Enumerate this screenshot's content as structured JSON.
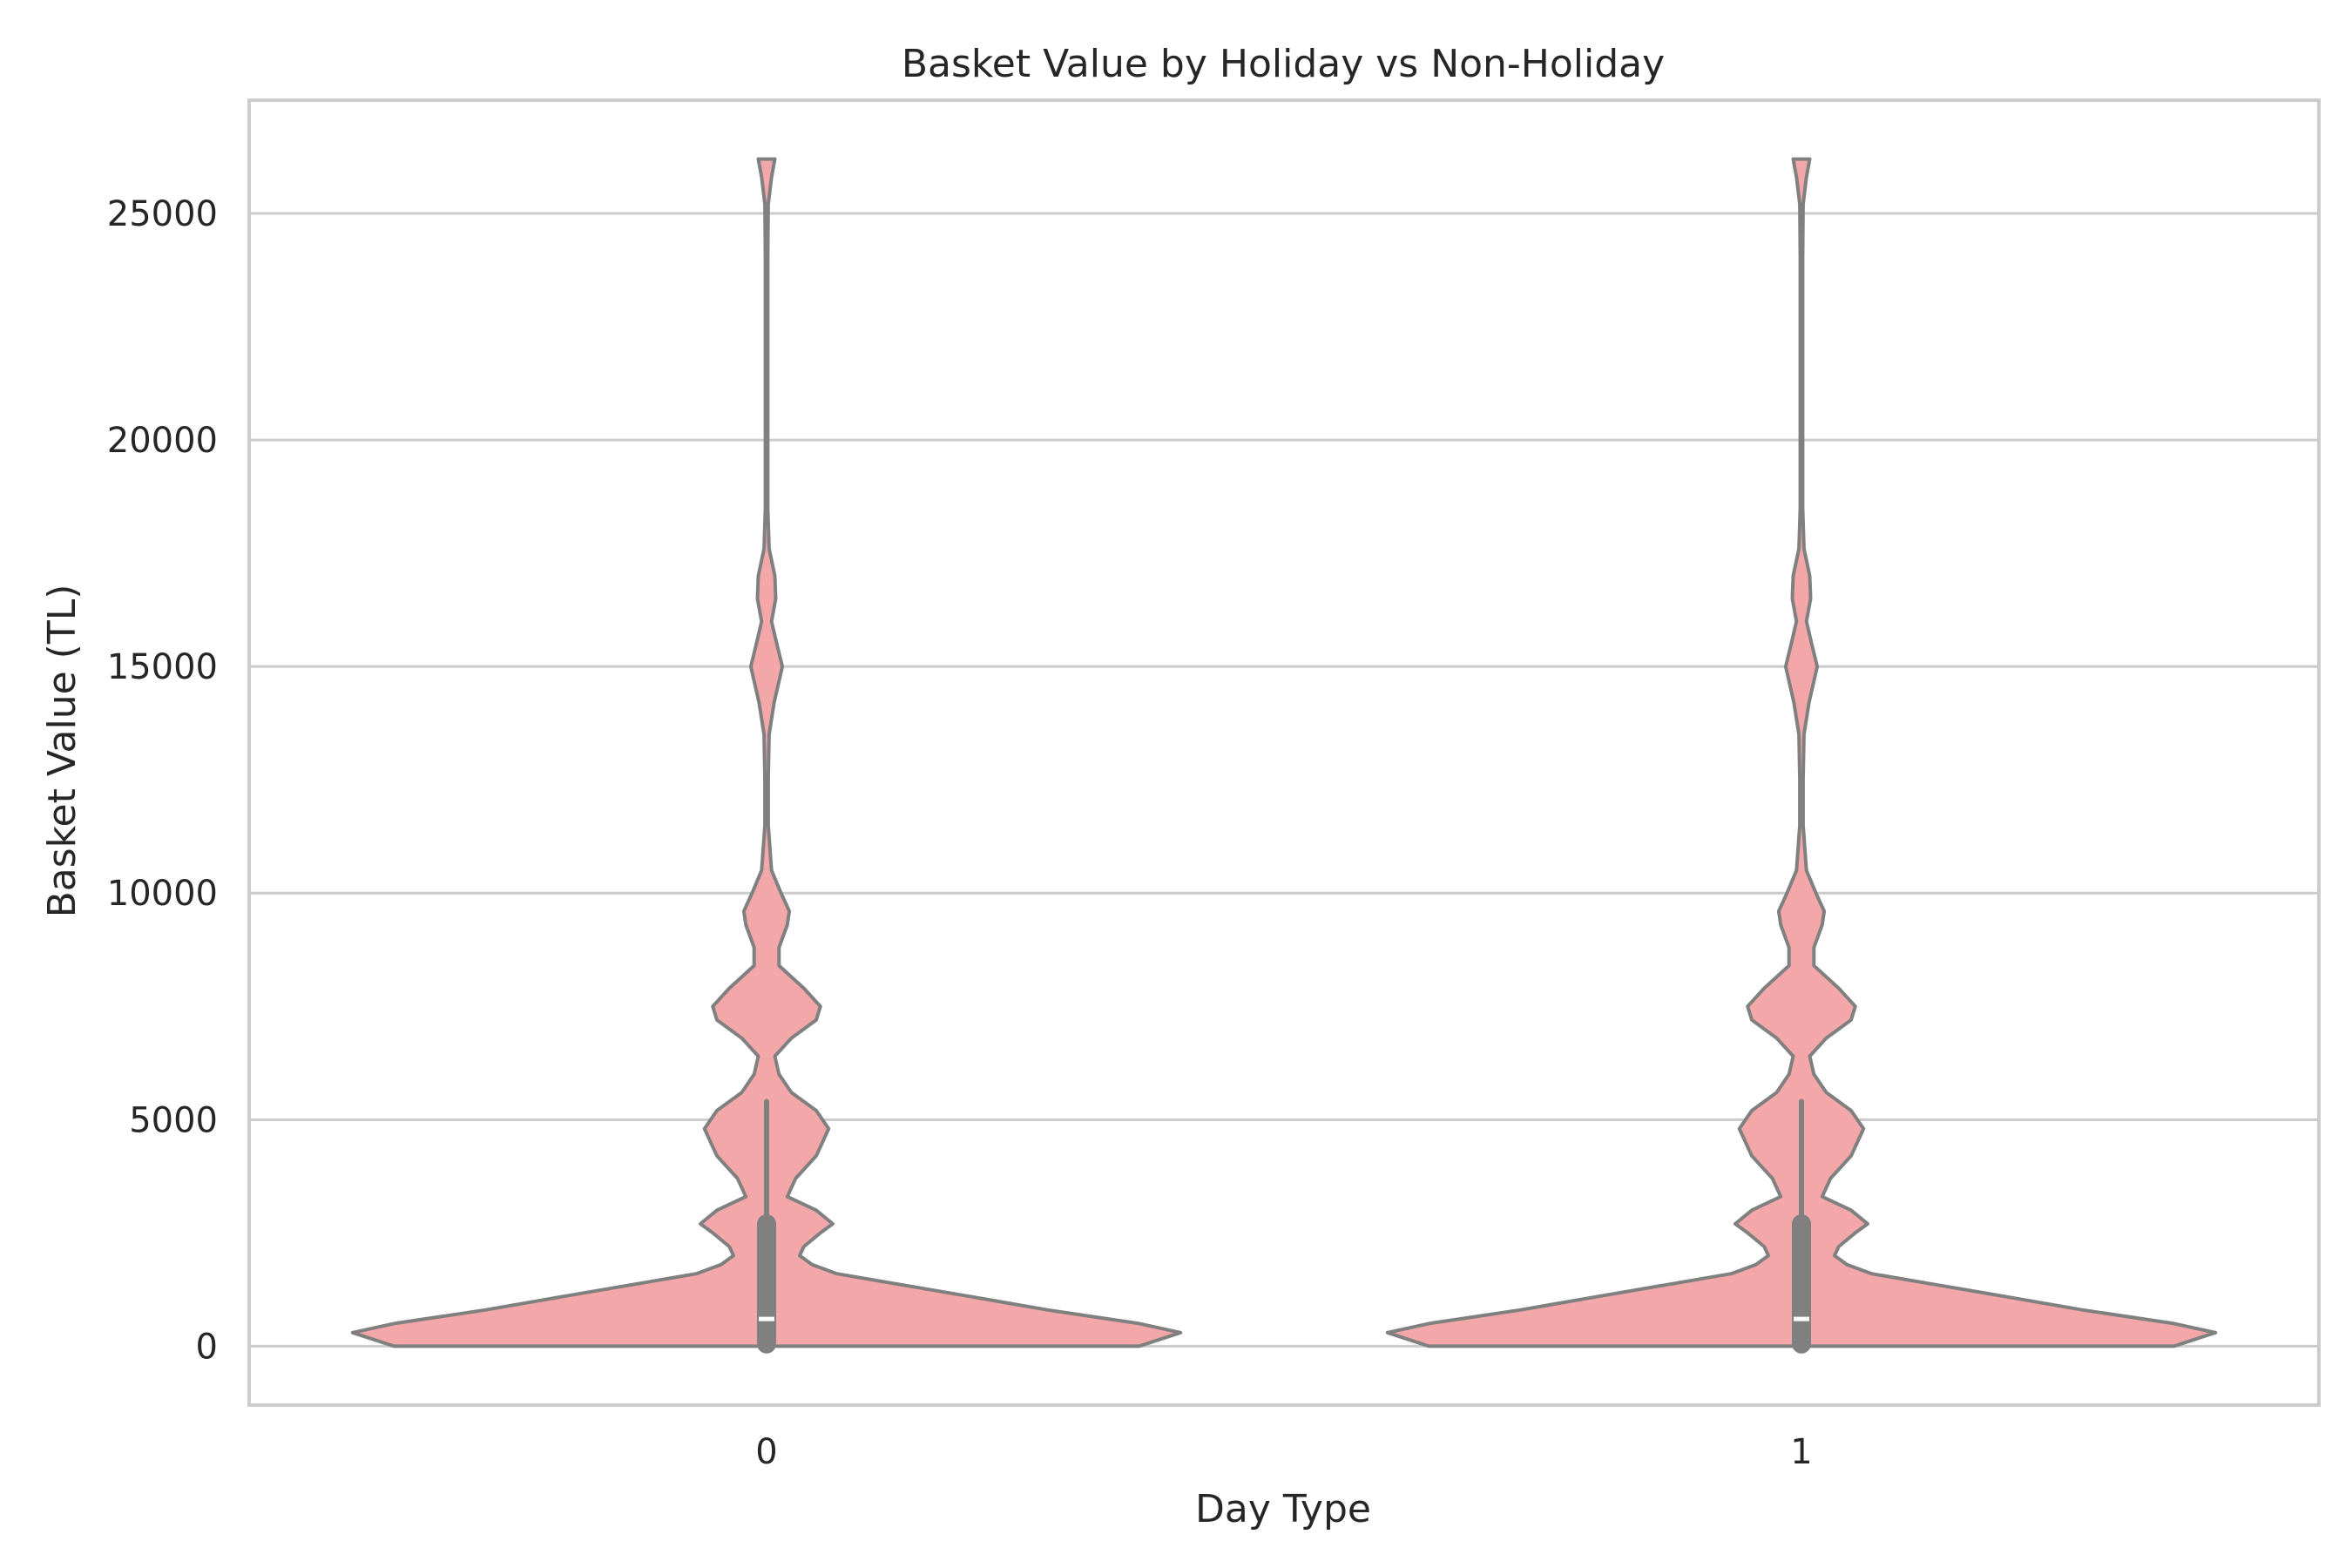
{
  "chart_data": {
    "type": "violin",
    "title": "Basket Value by Holiday vs Non-Holiday",
    "xlabel": "Day Type",
    "ylabel": "Basket Value (TL)",
    "categories": [
      "0",
      "1"
    ],
    "ylim": [
      -1300,
      27500
    ],
    "yticks": [
      0,
      5000,
      10000,
      15000,
      20000,
      25000
    ],
    "grid": true,
    "colors": {
      "fill": "#f4a7a9",
      "edge": "#808080",
      "median": "#ffffff",
      "grid": "#cccccc"
    },
    "violins": [
      {
        "category": "0",
        "min": 0,
        "max": 26200,
        "whisker_low": 0,
        "whisker_high": 5400,
        "q1": 50,
        "q3": 2700,
        "median": 600,
        "density": [
          [
            0,
            0.9
          ],
          [
            300,
            1.0
          ],
          [
            500,
            0.9
          ],
          [
            800,
            0.68
          ],
          [
            1100,
            0.49
          ],
          [
            1350,
            0.33
          ],
          [
            1600,
            0.17
          ],
          [
            1800,
            0.11
          ],
          [
            2000,
            0.08
          ],
          [
            2200,
            0.09
          ],
          [
            2500,
            0.13
          ],
          [
            2700,
            0.16
          ],
          [
            3000,
            0.12
          ],
          [
            3300,
            0.05
          ],
          [
            3700,
            0.07
          ],
          [
            4200,
            0.12
          ],
          [
            4800,
            0.15
          ],
          [
            5200,
            0.12
          ],
          [
            5600,
            0.06
          ],
          [
            6000,
            0.03
          ],
          [
            6400,
            0.02
          ],
          [
            6800,
            0.06
          ],
          [
            7200,
            0.12
          ],
          [
            7500,
            0.13
          ],
          [
            7900,
            0.09
          ],
          [
            8400,
            0.03
          ],
          [
            8800,
            0.03
          ],
          [
            9300,
            0.05
          ],
          [
            9600,
            0.055
          ],
          [
            10000,
            0.035
          ],
          [
            10500,
            0.012
          ],
          [
            11500,
            0.004
          ],
          [
            12500,
            0.004
          ],
          [
            13500,
            0.006
          ],
          [
            14200,
            0.018
          ],
          [
            15000,
            0.038
          ],
          [
            15600,
            0.022
          ],
          [
            16000,
            0.012
          ],
          [
            16500,
            0.022
          ],
          [
            17000,
            0.02
          ],
          [
            17600,
            0.006
          ],
          [
            18500,
            0.003
          ],
          [
            20000,
            0.003
          ],
          [
            22000,
            0.003
          ],
          [
            24000,
            0.003
          ],
          [
            25200,
            0.004
          ],
          [
            25800,
            0.012
          ],
          [
            26200,
            0.02
          ]
        ]
      },
      {
        "category": "1",
        "min": 0,
        "max": 26200,
        "whisker_low": 0,
        "whisker_high": 5400,
        "q1": 50,
        "q3": 2700,
        "median": 600,
        "density": [
          [
            0,
            0.9
          ],
          [
            300,
            1.0
          ],
          [
            500,
            0.9
          ],
          [
            800,
            0.68
          ],
          [
            1100,
            0.49
          ],
          [
            1350,
            0.33
          ],
          [
            1600,
            0.17
          ],
          [
            1800,
            0.11
          ],
          [
            2000,
            0.08
          ],
          [
            2200,
            0.09
          ],
          [
            2500,
            0.13
          ],
          [
            2700,
            0.16
          ],
          [
            3000,
            0.12
          ],
          [
            3300,
            0.05
          ],
          [
            3700,
            0.07
          ],
          [
            4200,
            0.12
          ],
          [
            4800,
            0.15
          ],
          [
            5200,
            0.12
          ],
          [
            5600,
            0.06
          ],
          [
            6000,
            0.03
          ],
          [
            6400,
            0.02
          ],
          [
            6800,
            0.06
          ],
          [
            7200,
            0.12
          ],
          [
            7500,
            0.13
          ],
          [
            7900,
            0.09
          ],
          [
            8400,
            0.03
          ],
          [
            8800,
            0.03
          ],
          [
            9300,
            0.05
          ],
          [
            9600,
            0.055
          ],
          [
            10000,
            0.035
          ],
          [
            10500,
            0.012
          ],
          [
            11500,
            0.004
          ],
          [
            12500,
            0.004
          ],
          [
            13500,
            0.006
          ],
          [
            14200,
            0.018
          ],
          [
            15000,
            0.038
          ],
          [
            15600,
            0.022
          ],
          [
            16000,
            0.012
          ],
          [
            16500,
            0.022
          ],
          [
            17000,
            0.02
          ],
          [
            17600,
            0.006
          ],
          [
            18500,
            0.003
          ],
          [
            20000,
            0.003
          ],
          [
            22000,
            0.003
          ],
          [
            24000,
            0.003
          ],
          [
            25200,
            0.004
          ],
          [
            25800,
            0.012
          ],
          [
            26200,
            0.02
          ]
        ]
      }
    ]
  }
}
